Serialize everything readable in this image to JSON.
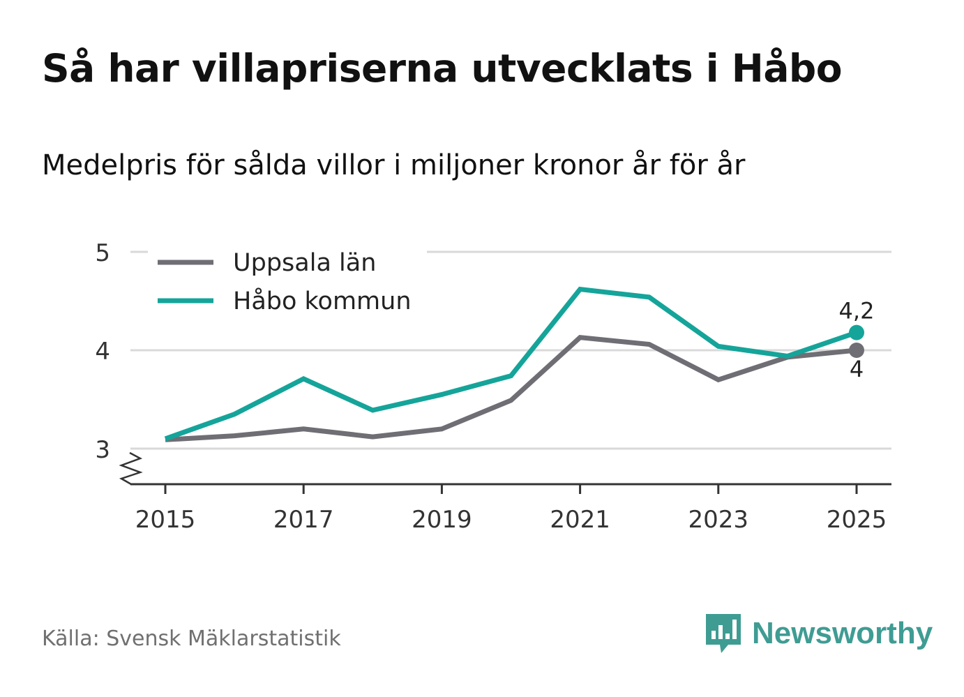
{
  "title": "Så har villapriserna utvecklats i Håbo",
  "subtitle": "Medelpris för sålda villor i miljoner kronor år för år",
  "source": "Källa: Svensk Mäklarstatistik",
  "brand": {
    "name": "Newsworthy",
    "icon": "bar-chart-speech-bubble-icon",
    "color": "#3f9c93"
  },
  "chart_data": {
    "type": "line",
    "title": "Så har villapriserna utvecklats i Håbo",
    "xlabel": "",
    "ylabel": "",
    "x": [
      2015,
      2016,
      2017,
      2018,
      2019,
      2020,
      2021,
      2022,
      2023,
      2024,
      2025
    ],
    "x_ticks": [
      2015,
      2017,
      2019,
      2021,
      2023,
      2025
    ],
    "x_tick_labels": [
      "2015",
      "2017",
      "2019",
      "2021",
      "2023",
      "2025"
    ],
    "ylim": [
      2.6,
      5
    ],
    "y_ticks": [
      3,
      4,
      5
    ],
    "y_tick_labels": [
      "3",
      "4",
      "5"
    ],
    "axis_break": true,
    "grid": true,
    "legend_position": "top-left",
    "series": [
      {
        "name": "Uppsala län",
        "color": "#6f6e74",
        "values": [
          3.09,
          3.13,
          3.2,
          3.12,
          3.2,
          3.49,
          4.13,
          4.06,
          3.7,
          3.93,
          4.0
        ],
        "end_label": "4"
      },
      {
        "name": "Håbo kommun",
        "color": "#15a49a",
        "values": [
          3.1,
          3.35,
          3.71,
          3.39,
          3.55,
          3.74,
          4.62,
          4.54,
          4.04,
          3.94,
          4.18
        ],
        "end_label": "4,2"
      }
    ]
  }
}
